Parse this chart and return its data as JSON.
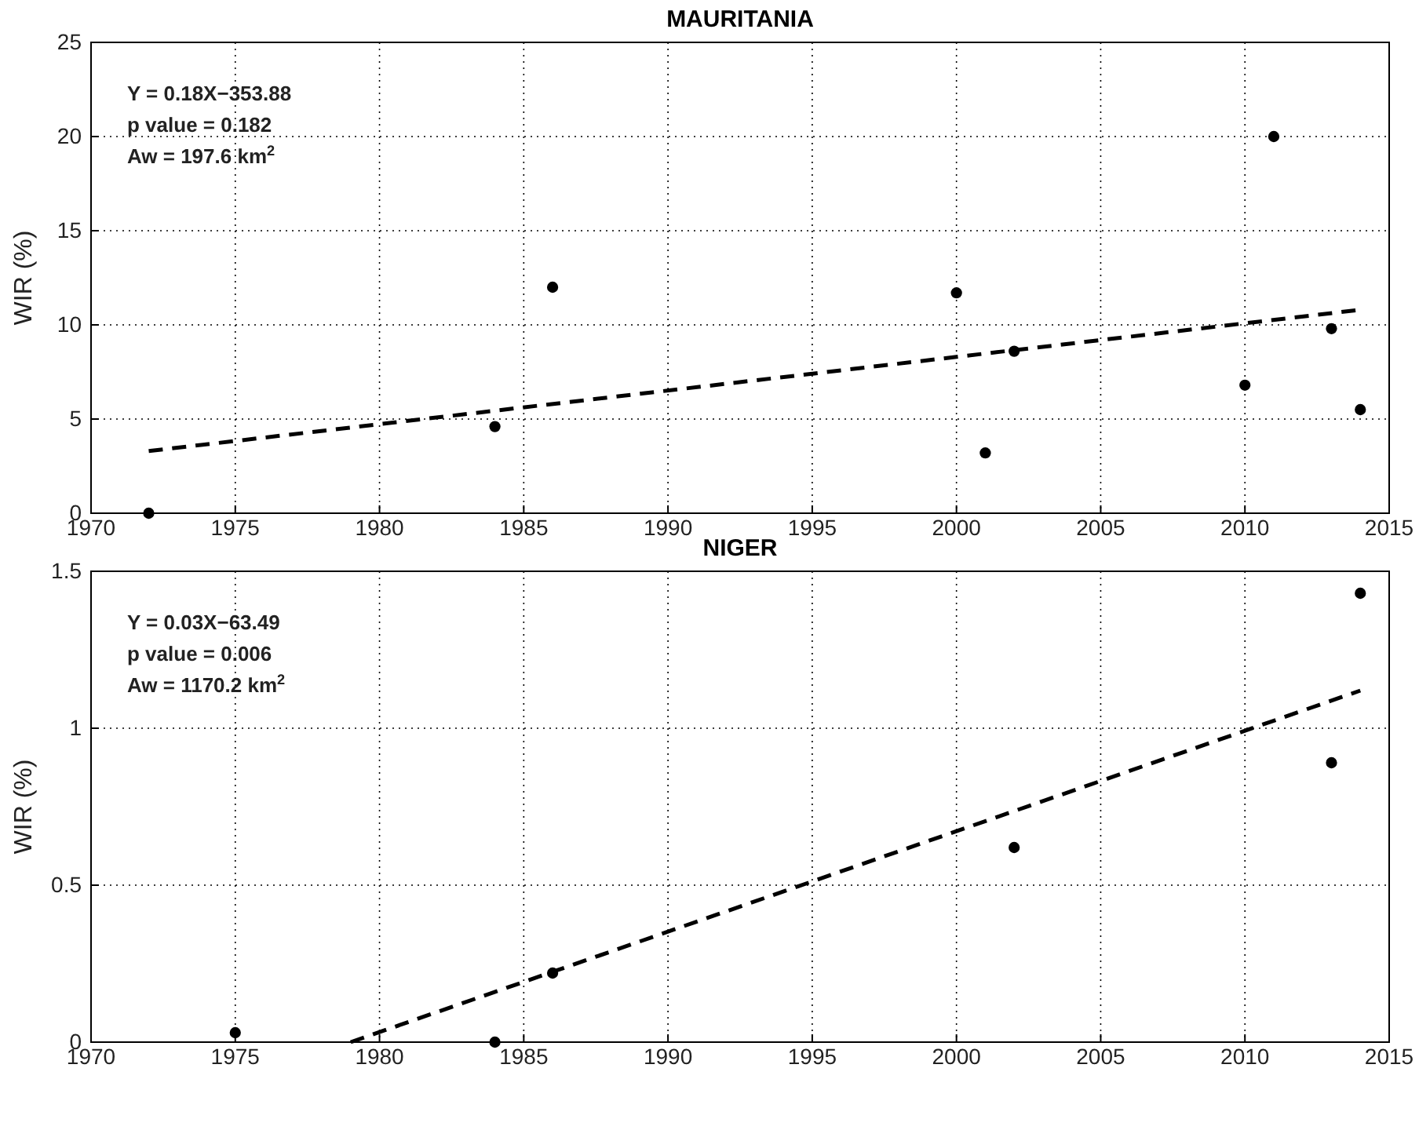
{
  "chart_data": [
    {
      "type": "scatter",
      "title": "MAURITANIA",
      "ylabel": "WIR (%)",
      "xlim": [
        1970,
        2015
      ],
      "xticks": [
        1970,
        1975,
        1980,
        1985,
        1990,
        1995,
        2000,
        2005,
        2010,
        2015
      ],
      "ylim": [
        0,
        25
      ],
      "yticks": [
        0,
        5,
        10,
        15,
        20,
        25
      ],
      "grid": true,
      "annotations": [
        "Y = 0.18X−353.88",
        "p value = 0.182",
        "Aw = 197.6 km$^{2}$"
      ],
      "series": [
        {
          "color": "#000000",
          "marker": "circle",
          "x": [
            1972,
            1984,
            1986,
            2000,
            2001,
            2002,
            2010,
            2011,
            2013,
            2014
          ],
          "values": [
            0,
            4.6,
            12.0,
            11.7,
            3.2,
            8.6,
            6.8,
            20.0,
            9.8,
            5.5
          ]
        },
        {
          "type": "line",
          "color": "#000000",
          "marker": "none",
          "line_style": "dashed",
          "x": [
            1972,
            2014
          ],
          "values": [
            3.3,
            10.8
          ]
        }
      ]
    },
    {
      "type": "scatter",
      "title": "NIGER",
      "ylabel": "WIR (%)",
      "xlim": [
        1970,
        2015
      ],
      "xticks": [
        1970,
        1975,
        1980,
        1985,
        1990,
        1995,
        2000,
        2005,
        2010,
        2015
      ],
      "ylim": [
        0,
        1.5
      ],
      "yticks": [
        0,
        0.5,
        1,
        1.5
      ],
      "grid": true,
      "annotations": [
        "Y = 0.03X−63.49",
        "p value = 0.006",
        "Aw = 1170.2 km$^{2}$"
      ],
      "series": [
        {
          "color": "#000000",
          "marker": "circle",
          "x": [
            1975,
            1984,
            1986,
            2002,
            2013,
            2014
          ],
          "values": [
            0.03,
            0,
            0.22,
            0.62,
            0.89,
            1.43
          ]
        },
        {
          "type": "line",
          "color": "#000000",
          "marker": "none",
          "line_style": "dashed",
          "x": [
            1979,
            2014
          ],
          "values": [
            0,
            1.12
          ]
        }
      ]
    }
  ]
}
